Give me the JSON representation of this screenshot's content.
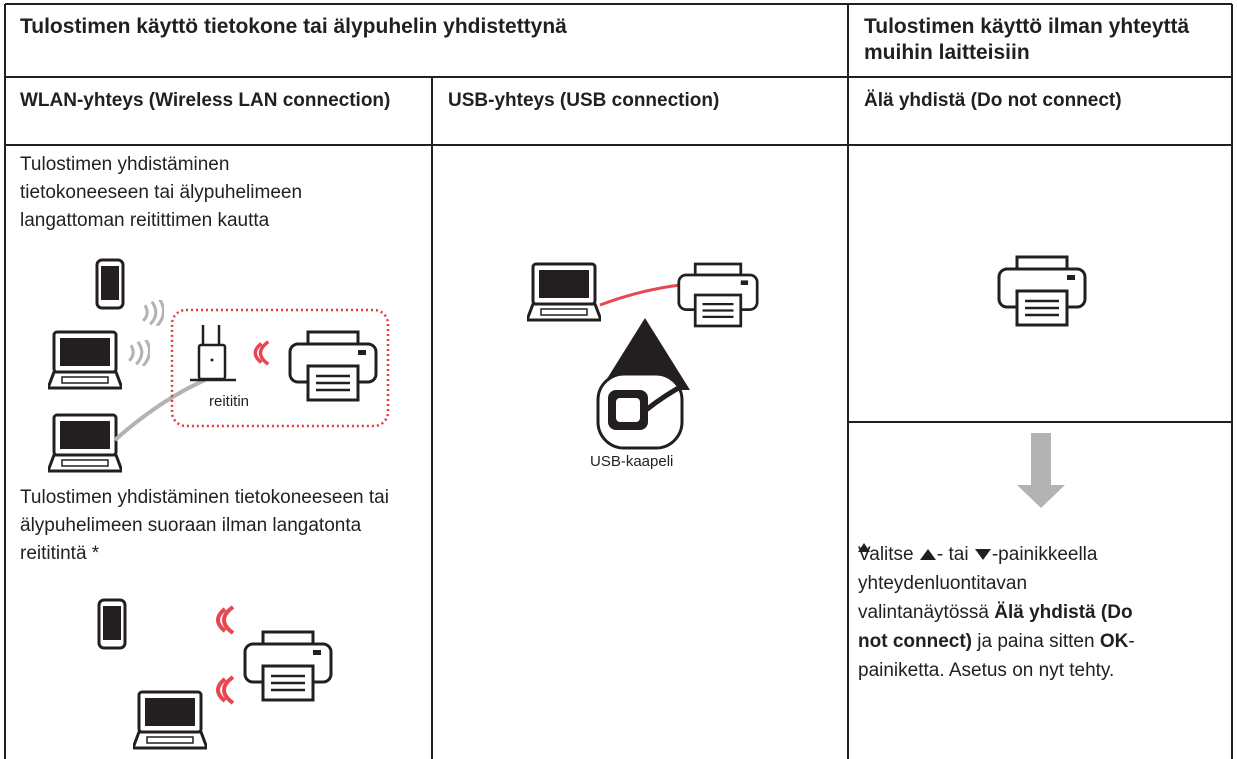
{
  "header": {
    "title": "Tulostimen käyttö tietokone tai älypuhelin yhdistettynä",
    "right_title": "Tulostimen käyttö ilman yhteyttä muihin laitteisiin"
  },
  "columns": [
    {
      "title": "WLAN-yhteys (Wireless LAN connection)",
      "text1": "Tulostimen yhdistäminen tietokoneeseen tai älypuhelimeen langattoman reitittimen kautta",
      "router_label": "reititin",
      "text2": "Tulostimen yhdistäminen tietokoneeseen tai älypuhelimeen suoraan ilman langatonta reititintä *"
    },
    {
      "title": "USB-yhteys (USB connection)",
      "cable_label": "USB-kaapeli"
    },
    {
      "title": "Älä yhdistä (Do not connect)",
      "instruction": [
        "Valitse ",
        "- tai ",
        "-painikkeella yhteydenluontitavan valintanäytössä ",
        "Älä yhdistä (Do not connect)",
        " ja paina sitten ",
        "OK",
        "-painiketta. Asetus on nyt tehty."
      ]
    }
  ]
}
